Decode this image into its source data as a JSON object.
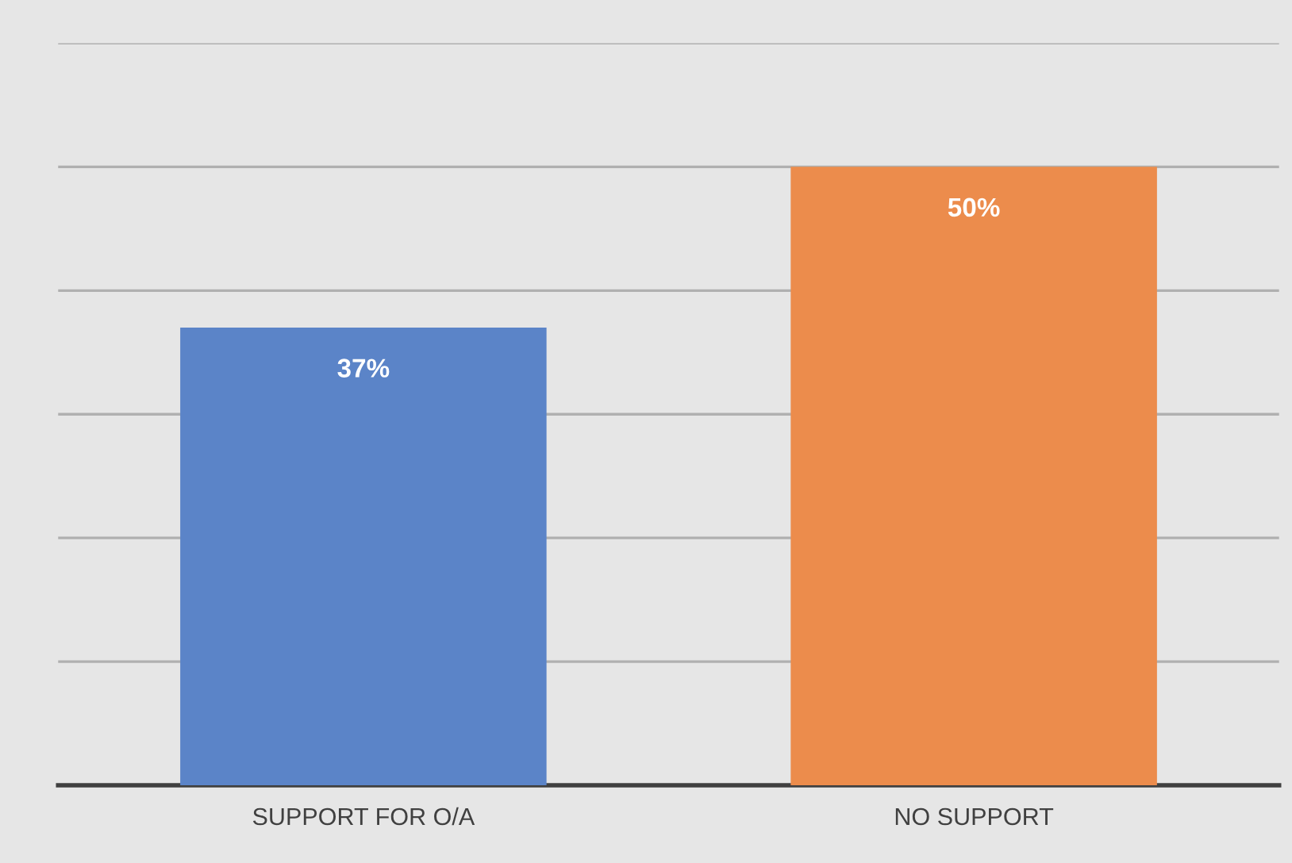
{
  "chart_data": {
    "type": "bar",
    "categories": [
      "SUPPORT FOR O/A",
      "NO SUPPORT"
    ],
    "values": [
      37,
      50
    ],
    "colors": [
      "#5b84c8",
      "#ec8c4c"
    ],
    "value_labels": [
      "37%",
      "50%"
    ],
    "ylim": [
      0,
      60
    ],
    "yticks": [
      {
        "value": 0,
        "label": null
      },
      {
        "value": 10,
        "label": null
      },
      {
        "value": 20,
        "label": null
      },
      {
        "value": 30,
        "label": null
      },
      {
        "value": 40,
        "label": null
      },
      {
        "value": 50,
        "label": null
      },
      {
        "value": 60,
        "label": null
      }
    ],
    "grid": "y",
    "tick_labels": "x"
  }
}
